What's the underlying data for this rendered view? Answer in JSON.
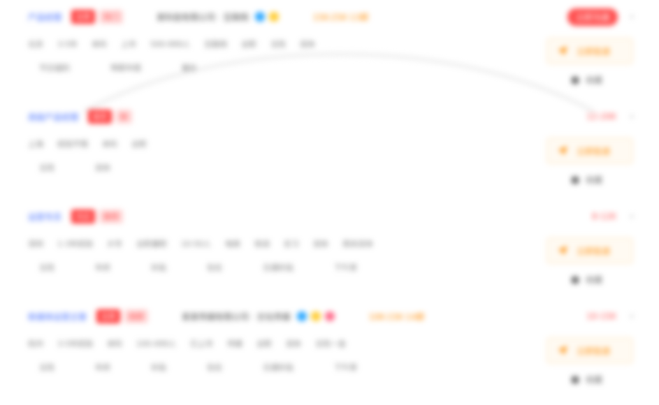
{
  "jobs": [
    {
      "title": "产品经理",
      "badges": [
        "急聘",
        "热门"
      ],
      "company": "某科技有限公司 · 互联网",
      "company_dots": [
        "blue",
        "yellow"
      ],
      "salary": "15K-25K·13薪",
      "salary_tag": "立即沟通",
      "salary_tag_style": "pill",
      "meta": [
        "北京",
        "3-5年",
        "本科",
        "上市",
        "500-999人",
        "互联网",
        "全职",
        "五险",
        "双休"
      ],
      "benefits": [
        "节日福利",
        "带薪年假",
        "餐补"
      ],
      "apply_label": "立即投递",
      "save_label": "收藏"
    },
    {
      "title": "高级产品经理",
      "badges": [
        "推荐",
        "新"
      ],
      "company": "",
      "company_dots": [],
      "salary": "",
      "salary_tag": "12-20K",
      "salary_tag_style": "plain",
      "meta": [
        "上海",
        "经验不限",
        "本科",
        "全职"
      ],
      "benefits": [
        "五险",
        "双休"
      ],
      "apply_label": "立即投递",
      "save_label": "收藏"
    },
    {
      "title": "运营专员",
      "badges": [
        "热招",
        "推荐"
      ],
      "company": "",
      "company_dots": [],
      "salary": "",
      "salary_tag": "8-12K",
      "salary_tag_style": "plain",
      "meta": [
        "深圳",
        "1-3年经验",
        "大专",
        "全职兼职",
        "10-50人",
        "电商",
        "快消",
        "实习",
        "双休",
        "周末双休"
      ],
      "benefits": [
        "五险",
        "年终",
        "补贴",
        "包住",
        "交通补贴",
        "下午茶"
      ],
      "apply_label": "立即投递",
      "save_label": "收藏"
    },
    {
      "title": "新媒体运营主管",
      "badges": [
        "急聘",
        "高薪"
      ],
      "company": "某某传媒有限公司 · 文化传媒",
      "company_dots": [
        "blue",
        "yellow",
        "pink"
      ],
      "salary": "10K-15K·14薪",
      "salary_tag": "10-15K",
      "salary_tag_style": "plain",
      "meta": [
        "杭州",
        "3-5年经验",
        "本科",
        "100-499人",
        "已上市",
        "传媒",
        "全职",
        "双休",
        "五险一金"
      ],
      "benefits": [
        "五险",
        "年终",
        "补贴",
        "包住",
        "交通补贴",
        "下午茶"
      ],
      "apply_label": "立即投递",
      "save_label": "收藏"
    }
  ],
  "icons": {
    "apply": "paper-plane-icon",
    "save": "bookmark-icon",
    "chevron": "chevron-right-icon"
  }
}
